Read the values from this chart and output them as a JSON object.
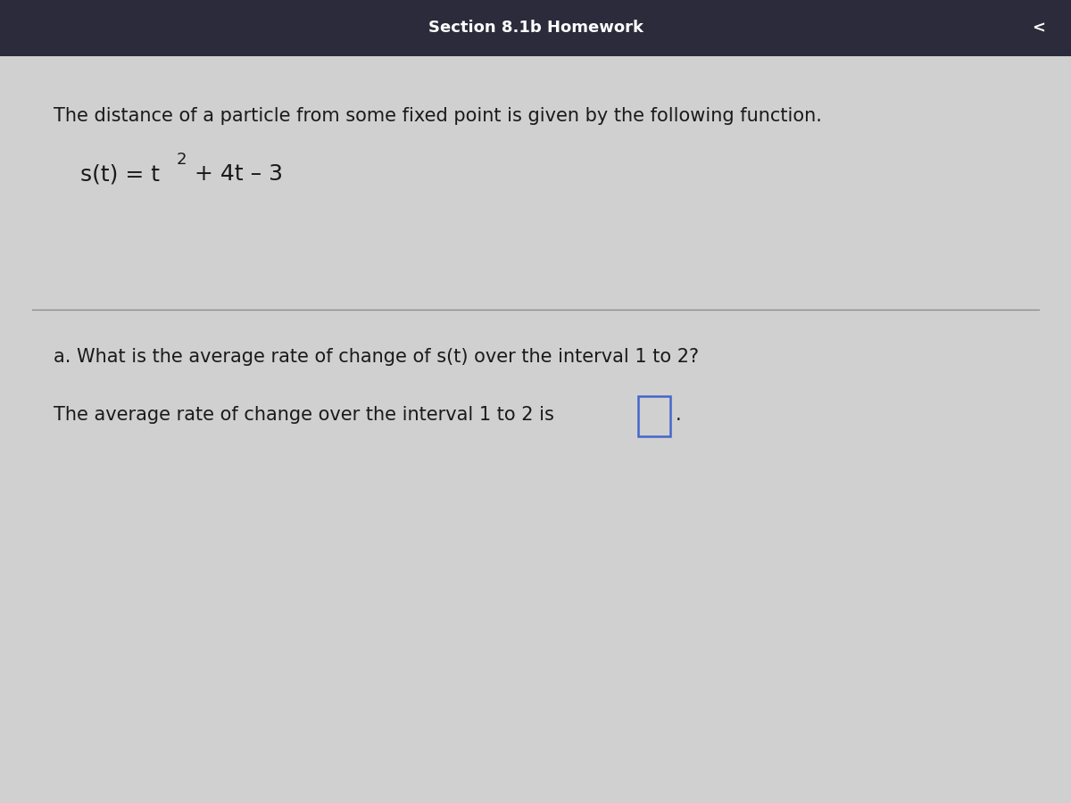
{
  "bg_top_color": "#2b2b3b",
  "bg_main_color": "#d0d0d0",
  "header_text": "Section 8.1b Homework",
  "line1": "The distance of a particle from some fixed point is given by the following function.",
  "formula_base": "s(t) = t",
  "formula_super": "2",
  "formula_rest": " + 4t – 3",
  "question_a": "a. What is the average rate of change of s(t) over the interval 1 to 2?",
  "answer_line": "The average rate of change over the interval 1 to 2 is",
  "text_color": "#1a1a1a",
  "header_color": "#ffffff",
  "box_color": "#4466cc",
  "divider_color": "#888888",
  "font_size_main": 15,
  "font_size_formula": 18,
  "font_size_question": 15
}
